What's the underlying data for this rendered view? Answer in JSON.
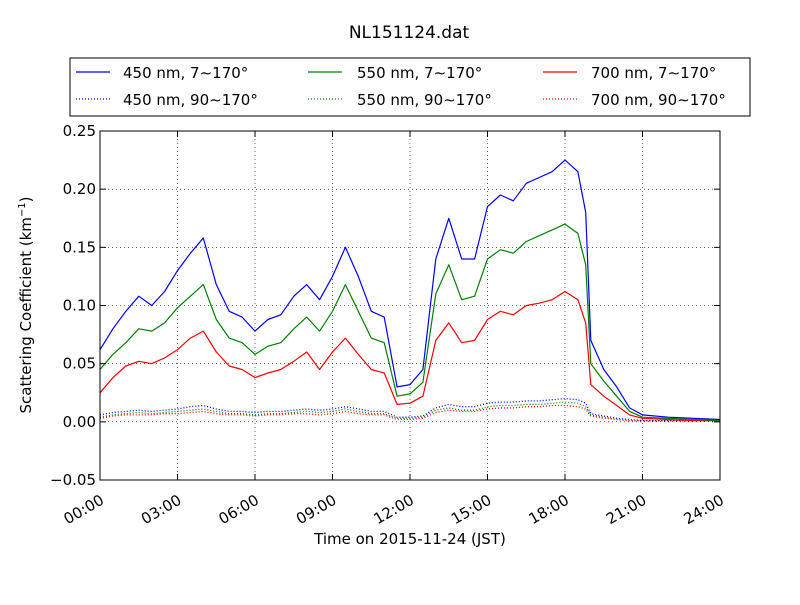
{
  "chart_data": {
    "type": "line",
    "title": "NL151124.dat",
    "xlabel": "Time on 2015-11-24 (JST)",
    "ylabel_main": "Scattering Coefficient (km",
    "ylabel_sup": "−1",
    "ylabel_close": ")",
    "xlim_hours": [
      0,
      24
    ],
    "ylim": [
      -0.05,
      0.25
    ],
    "grid": true,
    "legend_position": "top",
    "x_ticks": [
      {
        "hour": 0,
        "label": "00:00"
      },
      {
        "hour": 3,
        "label": "03:00"
      },
      {
        "hour": 6,
        "label": "06:00"
      },
      {
        "hour": 9,
        "label": "09:00"
      },
      {
        "hour": 12,
        "label": "12:00"
      },
      {
        "hour": 15,
        "label": "15:00"
      },
      {
        "hour": 18,
        "label": "18:00"
      },
      {
        "hour": 21,
        "label": "21:00"
      },
      {
        "hour": 24,
        "label": "24:00"
      }
    ],
    "y_ticks": [
      {
        "value": -0.05,
        "label": "−0.05"
      },
      {
        "value": 0.0,
        "label": "0.00"
      },
      {
        "value": 0.05,
        "label": "0.05"
      },
      {
        "value": 0.1,
        "label": "0.10"
      },
      {
        "value": 0.15,
        "label": "0.15"
      },
      {
        "value": 0.2,
        "label": "0.20"
      },
      {
        "value": 0.25,
        "label": "0.25"
      }
    ],
    "x": [
      0,
      0.5,
      1,
      1.5,
      2,
      2.5,
      3,
      3.5,
      4,
      4.5,
      5,
      5.5,
      6,
      6.5,
      7,
      7.5,
      8,
      8.5,
      9,
      9.5,
      10,
      10.5,
      11,
      11.5,
      12,
      12.5,
      13,
      13.5,
      14,
      14.5,
      15,
      15.5,
      16,
      16.5,
      17,
      17.5,
      18,
      18.5,
      18.8,
      19,
      19.5,
      20,
      20.5,
      21,
      22,
      23,
      24
    ],
    "series": [
      {
        "name": "450 nm, 7∼170°",
        "color": "#0000ff",
        "style": "solid",
        "values": [
          0.062,
          0.08,
          0.095,
          0.108,
          0.1,
          0.112,
          0.13,
          0.145,
          0.158,
          0.118,
          0.095,
          0.09,
          0.078,
          0.088,
          0.092,
          0.108,
          0.118,
          0.105,
          0.125,
          0.15,
          0.125,
          0.095,
          0.09,
          0.03,
          0.032,
          0.045,
          0.14,
          0.175,
          0.14,
          0.14,
          0.185,
          0.195,
          0.19,
          0.205,
          0.21,
          0.215,
          0.225,
          0.215,
          0.18,
          0.07,
          0.045,
          0.03,
          0.012,
          0.006,
          0.004,
          0.003,
          0.002
        ]
      },
      {
        "name": "450 nm, 90∼170°",
        "color": "#0000ff",
        "style": "dotted",
        "values": [
          0.006,
          0.008,
          0.009,
          0.01,
          0.009,
          0.01,
          0.011,
          0.013,
          0.014,
          0.011,
          0.009,
          0.009,
          0.008,
          0.009,
          0.009,
          0.01,
          0.011,
          0.01,
          0.011,
          0.013,
          0.011,
          0.009,
          0.009,
          0.004,
          0.004,
          0.005,
          0.012,
          0.015,
          0.013,
          0.013,
          0.016,
          0.017,
          0.017,
          0.018,
          0.018,
          0.019,
          0.02,
          0.019,
          0.016,
          0.007,
          0.005,
          0.003,
          0.002,
          0.001,
          0.001,
          0.001,
          0.001
        ]
      },
      {
        "name": "550 nm, 7∼170°",
        "color": "#008000",
        "style": "solid",
        "values": [
          0.045,
          0.058,
          0.068,
          0.08,
          0.078,
          0.085,
          0.098,
          0.108,
          0.118,
          0.088,
          0.072,
          0.068,
          0.058,
          0.065,
          0.068,
          0.08,
          0.09,
          0.078,
          0.095,
          0.118,
          0.095,
          0.072,
          0.068,
          0.022,
          0.024,
          0.034,
          0.11,
          0.135,
          0.105,
          0.108,
          0.14,
          0.148,
          0.145,
          0.155,
          0.16,
          0.165,
          0.17,
          0.162,
          0.135,
          0.05,
          0.035,
          0.022,
          0.009,
          0.004,
          0.003,
          0.002,
          0.001
        ]
      },
      {
        "name": "550 nm, 90∼170°",
        "color": "#008000",
        "style": "dotted",
        "values": [
          0.004,
          0.006,
          0.007,
          0.008,
          0.007,
          0.008,
          0.009,
          0.01,
          0.011,
          0.009,
          0.007,
          0.007,
          0.006,
          0.007,
          0.007,
          0.008,
          0.009,
          0.008,
          0.009,
          0.011,
          0.009,
          0.007,
          0.007,
          0.003,
          0.003,
          0.004,
          0.01,
          0.012,
          0.01,
          0.01,
          0.013,
          0.014,
          0.014,
          0.015,
          0.015,
          0.016,
          0.017,
          0.016,
          0.013,
          0.006,
          0.004,
          0.002,
          0.001,
          0.001,
          0.001,
          0.001,
          0.001
        ]
      },
      {
        "name": "700 nm, 7∼170°",
        "color": "#ff0000",
        "style": "solid",
        "values": [
          0.025,
          0.038,
          0.048,
          0.052,
          0.05,
          0.055,
          0.062,
          0.072,
          0.078,
          0.06,
          0.048,
          0.045,
          0.038,
          0.042,
          0.045,
          0.052,
          0.06,
          0.045,
          0.06,
          0.072,
          0.058,
          0.045,
          0.042,
          0.015,
          0.016,
          0.022,
          0.07,
          0.085,
          0.068,
          0.07,
          0.088,
          0.095,
          0.092,
          0.1,
          0.102,
          0.105,
          0.112,
          0.105,
          0.085,
          0.032,
          0.022,
          0.014,
          0.006,
          0.003,
          0.002,
          0.001,
          0.001
        ]
      },
      {
        "name": "700 nm, 90∼170°",
        "color": "#ff0000",
        "style": "dotted",
        "values": [
          0.003,
          0.005,
          0.006,
          0.006,
          0.006,
          0.007,
          0.007,
          0.008,
          0.009,
          0.007,
          0.006,
          0.006,
          0.005,
          0.006,
          0.006,
          0.007,
          0.007,
          0.006,
          0.007,
          0.009,
          0.007,
          0.006,
          0.006,
          0.002,
          0.002,
          0.003,
          0.008,
          0.01,
          0.009,
          0.009,
          0.011,
          0.012,
          0.012,
          0.013,
          0.013,
          0.014,
          0.014,
          0.013,
          0.011,
          0.005,
          0.003,
          0.002,
          0.001,
          0.001,
          0.001,
          0.001,
          0.001
        ]
      }
    ]
  }
}
